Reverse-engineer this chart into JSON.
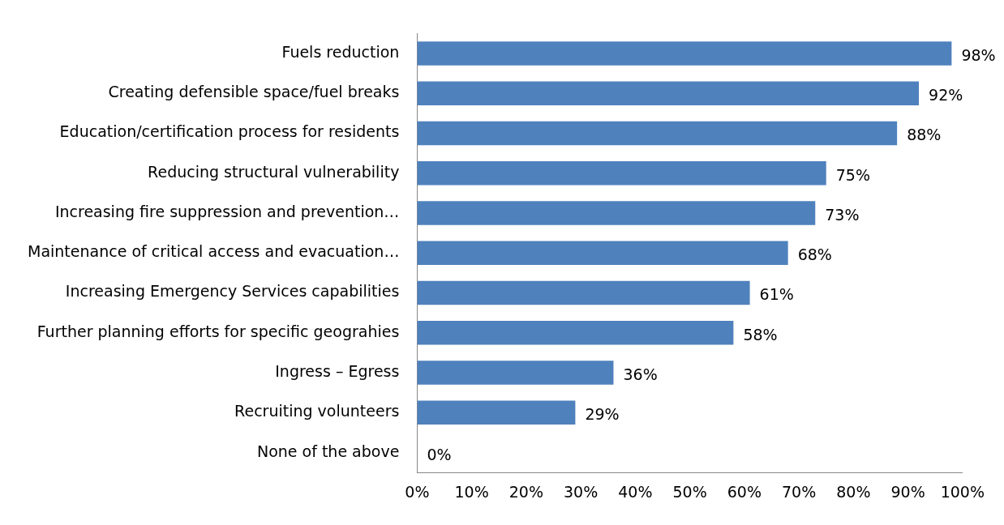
{
  "chart_data": {
    "type": "bar",
    "orientation": "horizontal",
    "categories": [
      "Fuels reduction",
      "Creating defensible space/fuel breaks",
      "Education/certification process for residents",
      "Reducing structural vulnerability",
      "Increasing fire suppression and prevention…",
      "Maintenance of critical access and evacuation…",
      "Increasing Emergency Services capabilities",
      "Further planning efforts for specific geograhies",
      "Ingress – Egress",
      "Recruiting volunteers",
      "None of the above"
    ],
    "values": [
      98,
      92,
      88,
      75,
      73,
      68,
      61,
      58,
      36,
      29,
      0
    ],
    "value_labels": [
      "98%",
      "92%",
      "88%",
      "75%",
      "73%",
      "68%",
      "61%",
      "58%",
      "36%",
      "29%",
      "0%"
    ],
    "color": "#4f81bd",
    "xlim": [
      0,
      100
    ],
    "xticks": [
      {
        "value": 0,
        "label": "0%"
      },
      {
        "value": 10,
        "label": "10%"
      },
      {
        "value": 20,
        "label": "20%"
      },
      {
        "value": 30,
        "label": "30%"
      },
      {
        "value": 40,
        "label": "40%"
      },
      {
        "value": 50,
        "label": "50%"
      },
      {
        "value": 60,
        "label": "60%"
      },
      {
        "value": 70,
        "label": "70%"
      },
      {
        "value": 80,
        "label": "80%"
      },
      {
        "value": 90,
        "label": "90%"
      },
      {
        "value": 100,
        "label": "100%"
      }
    ],
    "grid": false,
    "legend": false
  }
}
